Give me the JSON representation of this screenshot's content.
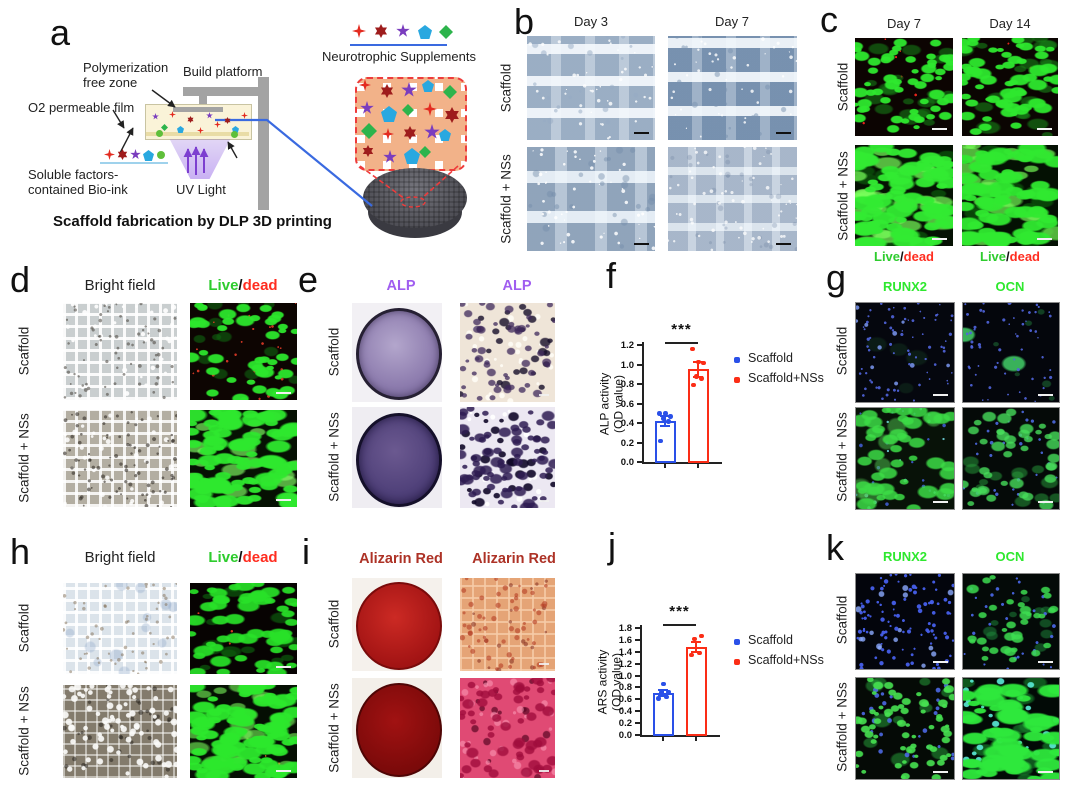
{
  "panels": {
    "a": "a",
    "b": "b",
    "c": "c",
    "d": "d",
    "e": "e",
    "f": "f",
    "g": "g",
    "h": "h",
    "i": "i",
    "j": "j",
    "k": "k"
  },
  "panel_a": {
    "labels": {
      "poly1": "Polymerization",
      "poly2": "free zone",
      "build_platform": "Build platform",
      "o2_film": "O2 permeable film",
      "soluble1": "Soluble factors-",
      "soluble2": "contained Bio-ink",
      "uv": "UV Light",
      "caption": "Scaffold fabrication by DLP 3D printing",
      "supplements": "Neurotrophic Supplements"
    },
    "supplement_icons": [
      "red-four-point-star",
      "dark-red-six-point-star",
      "purple-five-point-star",
      "blue-pentagon",
      "green-diamond"
    ]
  },
  "panel_b": {
    "col_headers": [
      "Day 3",
      "Day 7"
    ],
    "row_labels": [
      "Scaffold",
      "Scaffold + NSs"
    ]
  },
  "panel_c": {
    "col_headers": [
      "Day 7",
      "Day 14"
    ],
    "row_labels": [
      "Scaffold",
      "Scaffold + NSs"
    ],
    "live": "Live",
    "slash": "/",
    "dead": "dead"
  },
  "panel_d": {
    "bright_field": "Bright field",
    "live": "Live",
    "slash": "/",
    "dead": "dead",
    "row_labels": [
      "Scaffold",
      "Scaffold + NSs"
    ]
  },
  "panel_e": {
    "col_headers": [
      "ALP",
      "ALP"
    ],
    "row_labels": [
      "Scaffold",
      "Scaffold + NSs"
    ]
  },
  "panel_g": {
    "col_headers": [
      "RUNX2",
      "OCN"
    ],
    "row_labels": [
      "Scaffold",
      "Scaffold + NSs"
    ]
  },
  "panel_h": {
    "bright_field": "Bright field",
    "live": "Live",
    "slash": "/",
    "dead": "dead",
    "row_labels": [
      "Scaffold",
      "Scaffold + NSs"
    ]
  },
  "panel_i": {
    "col_headers": [
      "Alizarin Red",
      "Alizarin Red"
    ],
    "row_labels": [
      "Scaffold",
      "Scaffold + NSs"
    ]
  },
  "panel_k": {
    "col_headers": [
      "RUNX2",
      "OCN"
    ],
    "row_labels": [
      "Scaffold",
      "Scaffold + NSs"
    ]
  },
  "colors": {
    "accent_blue": "#2a50e8",
    "accent_red": "#fb2d16",
    "green_label": "#2ee82e",
    "red_label": "#ff2d20",
    "purple_label": "#a05df0",
    "alizarin_label": "#ad3226"
  },
  "chart_data": [
    {
      "type": "bar",
      "id": "chart-alp",
      "categories": [
        "Scaffold",
        "Scaffold+NSs"
      ],
      "values": [
        0.42,
        0.95
      ],
      "errors": [
        0.05,
        0.08
      ],
      "points": [
        [
          0.22,
          0.42,
          0.45,
          0.47,
          0.5,
          0.5
        ],
        [
          0.79,
          0.86,
          0.88,
          1.02,
          1.03,
          1.16
        ]
      ],
      "ylabel_line1": "ALP activity",
      "ylabel_line2": "(OD value)",
      "ylim": [
        0,
        1.2
      ],
      "ytick": 0.2,
      "significance": "***",
      "legend": [
        {
          "label": "Scaffold",
          "color": "#2a50e8"
        },
        {
          "label": "Scaffold+NSs",
          "color": "#fb2d16"
        }
      ]
    },
    {
      "type": "bar",
      "id": "chart-ars",
      "categories": [
        "Scaffold",
        "Scaffold+NSs"
      ],
      "values": [
        0.7,
        1.48
      ],
      "errors": [
        0.05,
        0.09
      ],
      "points": [
        [
          0.62,
          0.64,
          0.72,
          0.73,
          0.86
        ],
        [
          1.35,
          1.38,
          1.62,
          1.67
        ]
      ],
      "ylabel_line1": "ARS activity",
      "ylabel_line2": "(OD value)",
      "ylim": [
        0,
        1.8
      ],
      "ytick": 0.2,
      "significance": "***",
      "legend": [
        {
          "label": "Scaffold",
          "color": "#2a50e8"
        },
        {
          "label": "Scaffold+NSs",
          "color": "#fb2d16"
        }
      ]
    }
  ]
}
